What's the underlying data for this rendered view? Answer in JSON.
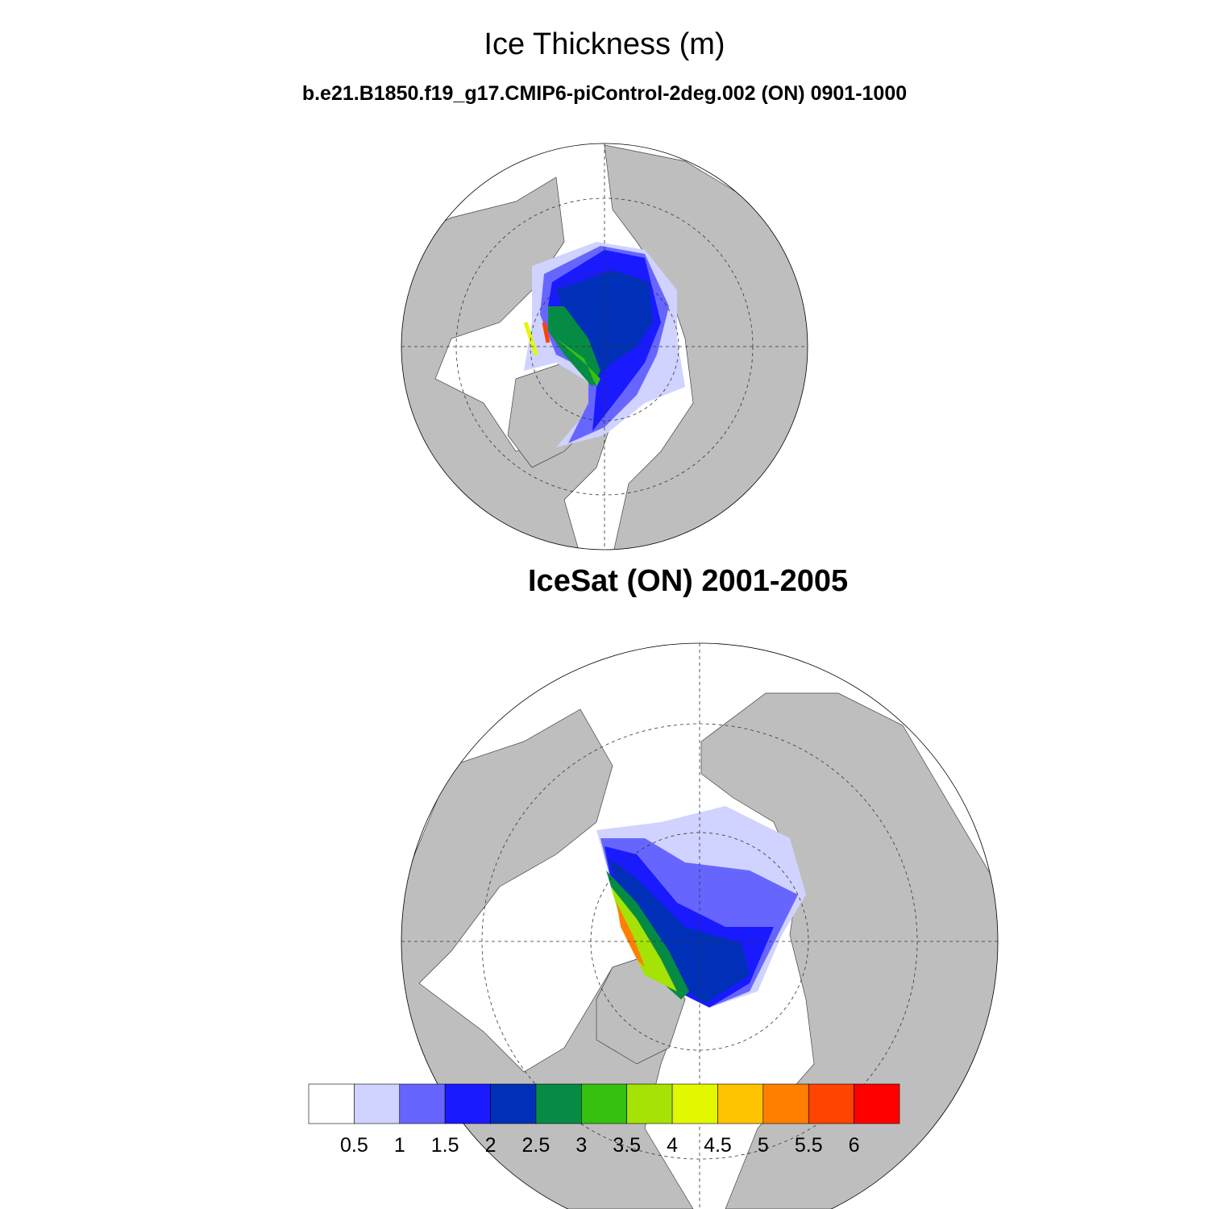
{
  "title": "Ice Thickness (m)",
  "subtitle": "b.e21.B1850.f19_g17.CMIP6-piControl-2deg.002 (ON) 0901-1000",
  "panels": [
    {
      "name": "model",
      "title": ""
    },
    {
      "name": "observations",
      "title": "IceSat (ON) 2001-2005"
    }
  ],
  "colors": {
    "land": "#bebebe",
    "ocean": "#ffffff"
  },
  "chart_data": {
    "type": "heatmap",
    "projection": "north-polar-stereographic",
    "variable": "Ice Thickness (m)",
    "colorbar": {
      "levels": [
        "0.5",
        "1",
        "1.5",
        "2",
        "2.5",
        "3",
        "3.5",
        "4",
        "4.5",
        "5",
        "5.5",
        "6"
      ],
      "colors": [
        "#ffffff",
        "#d0d2ff",
        "#6666ff",
        "#1a1aff",
        "#0030b8",
        "#068b44",
        "#36c010",
        "#a5e205",
        "#e1f800",
        "#ffc300",
        "#ff7f00",
        "#ff4300",
        "#ff0000"
      ]
    }
  }
}
